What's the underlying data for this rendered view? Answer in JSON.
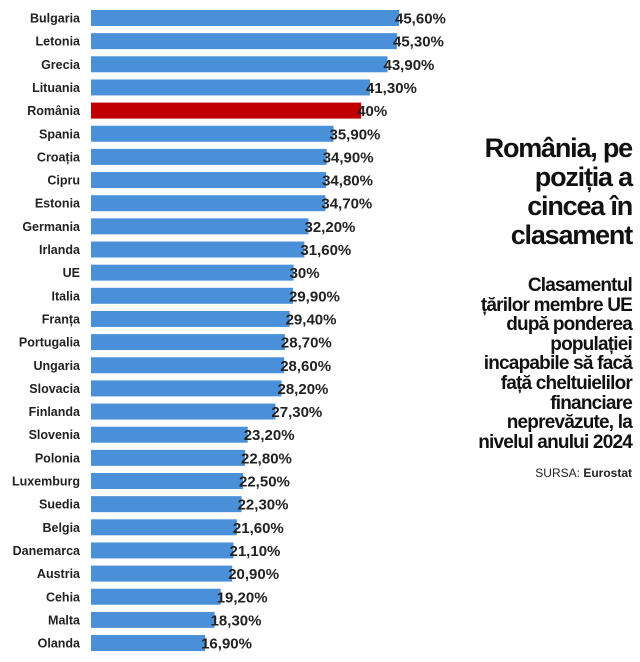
{
  "headline": "România, pe poziția a cincea în clasament",
  "subtitle": "Clasamentul țărilor membre UE după ponderea populației incapabile să facă față cheltuielilor financiare neprevăzute, la nivelul anului 2024",
  "source": {
    "label": "SURSA:",
    "name": "Eurostat"
  },
  "colors": {
    "bar": "#4a90d9",
    "highlight": "#c00000"
  },
  "chart_data": {
    "type": "bar",
    "orientation": "horizontal",
    "unit": "%",
    "xlim": [
      0,
      50
    ],
    "grid": false,
    "highlight": "România",
    "categories": [
      "Bulgaria",
      "Letonia",
      "Grecia",
      "Lituania",
      "România",
      "Spania",
      "Croația",
      "Cipru",
      "Estonia",
      "Germania",
      "Irlanda",
      "UE",
      "Italia",
      "Franța",
      "Portugalia",
      "Ungaria",
      "Slovacia",
      "Finlanda",
      "Slovenia",
      "Polonia",
      "Luxemburg",
      "Suedia",
      "Belgia",
      "Danemarca",
      "Austria",
      "Cehia",
      "Malta",
      "Olanda"
    ],
    "values": [
      45.6,
      45.3,
      43.9,
      41.3,
      40,
      35.9,
      34.9,
      34.8,
      34.7,
      32.2,
      31.6,
      30,
      29.9,
      29.4,
      28.7,
      28.6,
      28.2,
      27.3,
      23.2,
      22.8,
      22.5,
      22.3,
      21.6,
      21.1,
      20.9,
      19.2,
      18.3,
      16.9
    ],
    "labels": [
      "45,60%",
      "45,30%",
      "43,90%",
      "41,30%",
      "40%",
      "35,90%",
      "34,90%",
      "34,80%",
      "34,70%",
      "32,20%",
      "31,60%",
      "30%",
      "29,90%",
      "29,40%",
      "28,70%",
      "28,60%",
      "28,20%",
      "27,30%",
      "23,20%",
      "22,80%",
      "22,50%",
      "22,30%",
      "21,60%",
      "21,10%",
      "20,90%",
      "19,20%",
      "18,30%",
      "16,90%"
    ]
  }
}
